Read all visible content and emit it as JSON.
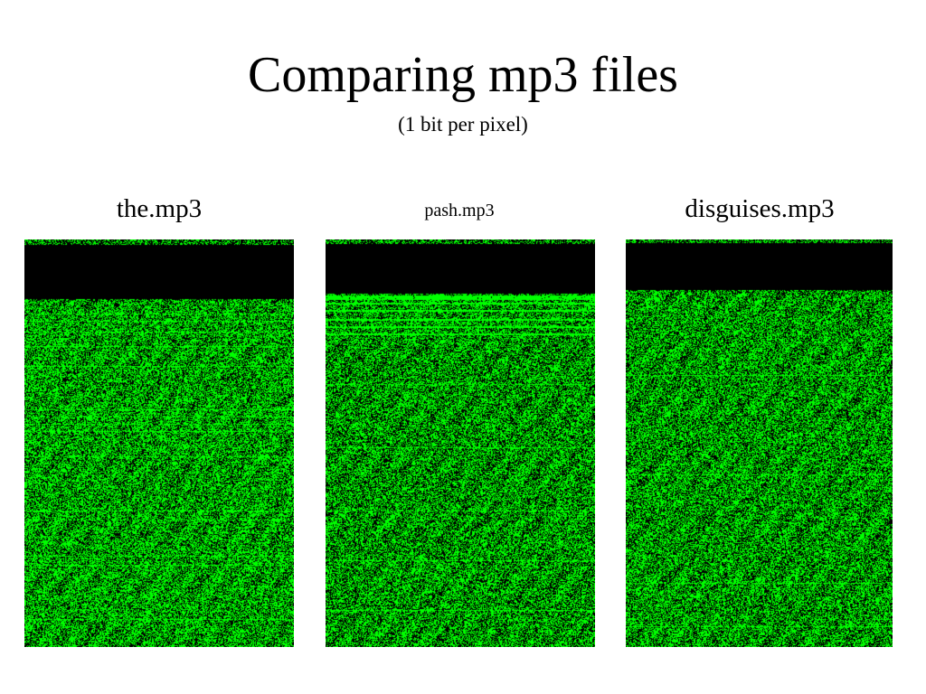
{
  "slide": {
    "title": "Comparing mp3 files",
    "subtitle": "(1 bit per pixel)"
  },
  "panels": [
    {
      "label": "the.mp3",
      "header_style": "black band with distinct bright horizontal stripes below"
    },
    {
      "label": "pash.mp3",
      "header_style": "black band followed by several solid green horizontal lines"
    },
    {
      "label": "disguises.mp3",
      "header_style": "black band, uniform noise below"
    }
  ],
  "colors": {
    "bit_on": "#00ff00",
    "bit_off": "#000000",
    "background": "#ffffff"
  }
}
